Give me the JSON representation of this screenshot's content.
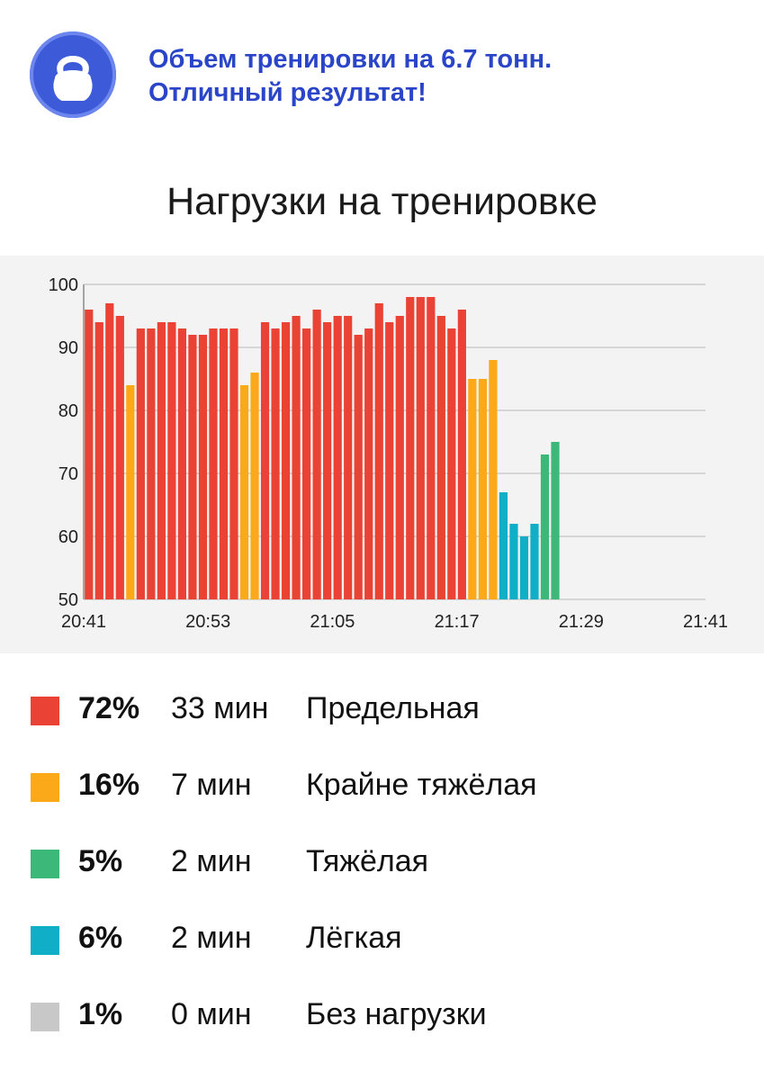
{
  "header": {
    "line1": "Объем тренировки на 6.7 тонн.",
    "line2": "Отличный результат!",
    "icon": "kettlebell-icon",
    "badge_color": "#3d5bd9"
  },
  "chart_title": "Нагрузки на тренировке",
  "chart_data": {
    "type": "bar",
    "ylim": [
      50,
      100
    ],
    "yticks": [
      50,
      60,
      70,
      80,
      90,
      100
    ],
    "x_range_minutes": [
      0,
      60
    ],
    "xticks": [
      "20:41",
      "20:53",
      "21:05",
      "21:17",
      "21:29",
      "21:41"
    ],
    "grid": true,
    "bar_colors": {
      "red": "#ea4335",
      "orange": "#fba919",
      "green": "#3cb878",
      "teal": "#10aec7"
    },
    "bars": [
      {
        "v": 96,
        "c": "red"
      },
      {
        "v": 94,
        "c": "red"
      },
      {
        "v": 97,
        "c": "red"
      },
      {
        "v": 95,
        "c": "red"
      },
      {
        "v": 84,
        "c": "orange"
      },
      {
        "v": 93,
        "c": "red"
      },
      {
        "v": 93,
        "c": "red"
      },
      {
        "v": 94,
        "c": "red"
      },
      {
        "v": 94,
        "c": "red"
      },
      {
        "v": 93,
        "c": "red"
      },
      {
        "v": 92,
        "c": "red"
      },
      {
        "v": 92,
        "c": "red"
      },
      {
        "v": 93,
        "c": "red"
      },
      {
        "v": 93,
        "c": "red"
      },
      {
        "v": 93,
        "c": "red"
      },
      {
        "v": 84,
        "c": "orange"
      },
      {
        "v": 86,
        "c": "orange"
      },
      {
        "v": 94,
        "c": "red"
      },
      {
        "v": 93,
        "c": "red"
      },
      {
        "v": 94,
        "c": "red"
      },
      {
        "v": 95,
        "c": "red"
      },
      {
        "v": 93,
        "c": "red"
      },
      {
        "v": 96,
        "c": "red"
      },
      {
        "v": 94,
        "c": "red"
      },
      {
        "v": 95,
        "c": "red"
      },
      {
        "v": 95,
        "c": "red"
      },
      {
        "v": 92,
        "c": "red"
      },
      {
        "v": 93,
        "c": "red"
      },
      {
        "v": 97,
        "c": "red"
      },
      {
        "v": 94,
        "c": "red"
      },
      {
        "v": 95,
        "c": "red"
      },
      {
        "v": 98,
        "c": "red"
      },
      {
        "v": 98,
        "c": "red"
      },
      {
        "v": 98,
        "c": "red"
      },
      {
        "v": 95,
        "c": "red"
      },
      {
        "v": 93,
        "c": "red"
      },
      {
        "v": 96,
        "c": "red"
      },
      {
        "v": 85,
        "c": "orange"
      },
      {
        "v": 85,
        "c": "orange"
      },
      {
        "v": 88,
        "c": "orange"
      },
      {
        "v": 67,
        "c": "teal"
      },
      {
        "v": 62,
        "c": "teal"
      },
      {
        "v": 60,
        "c": "teal"
      },
      {
        "v": 62,
        "c": "teal"
      },
      {
        "v": 73,
        "c": "green"
      },
      {
        "v": 75,
        "c": "green"
      }
    ]
  },
  "legend": [
    {
      "pct": "72%",
      "mins": "33 мин",
      "zone": "Предельная",
      "color": "#ea4335"
    },
    {
      "pct": "16%",
      "mins": "7 мин",
      "zone": "Крайне тяжёлая",
      "color": "#fba919"
    },
    {
      "pct": "5%",
      "mins": "2 мин",
      "zone": "Тяжёлая",
      "color": "#3cb878"
    },
    {
      "pct": "6%",
      "mins": "2 мин",
      "zone": "Лёгкая",
      "color": "#10aec7"
    },
    {
      "pct": "1%",
      "mins": "0 мин",
      "zone": "Без нагрузки",
      "color": "#c8c8c8"
    }
  ]
}
